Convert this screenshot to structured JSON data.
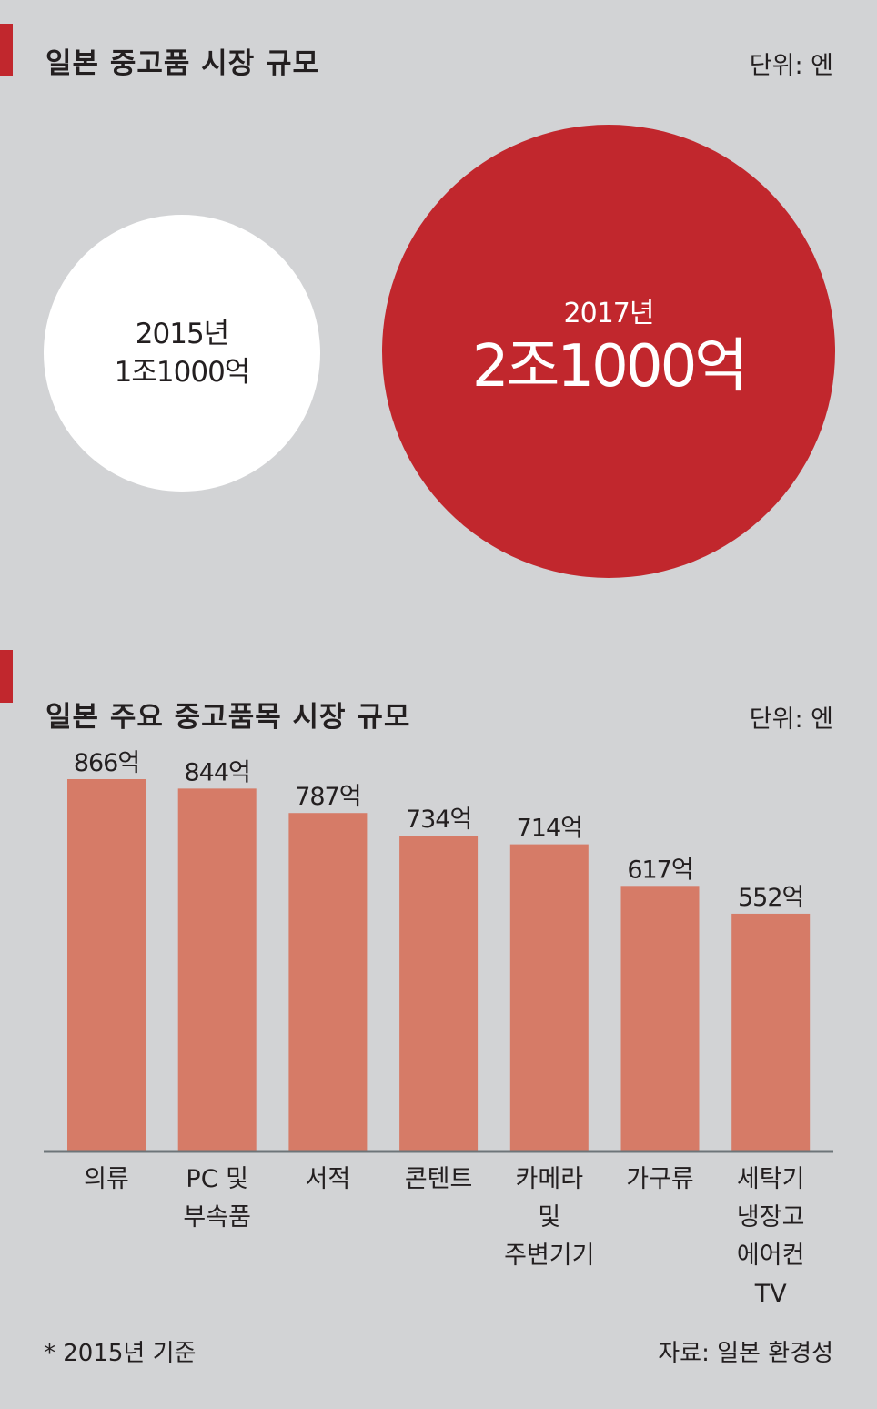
{
  "market_size": {
    "title": "일본 중고품 시장 규모",
    "unit": "단위: 엔",
    "items": [
      {
        "year_label": "2015년",
        "value_label": "1조1000억"
      },
      {
        "year_label": "2017년",
        "value_label": "2조1000억"
      }
    ]
  },
  "items_section": {
    "title": "일본 주요 중고품목 시장 규모",
    "unit": "단위: 엔"
  },
  "chart_data": {
    "type": "bar",
    "categories": [
      "의류",
      "PC 및 부속품",
      "서적",
      "콘텐트",
      "카메라 및 주변기기",
      "가구류",
      "세탁기 냉장고 에어컨 TV"
    ],
    "category_lines": [
      [
        "의류"
      ],
      [
        "PC 및",
        "부속품"
      ],
      [
        "서적"
      ],
      [
        "콘텐트"
      ],
      [
        "카메라",
        "및",
        "주변기기"
      ],
      [
        "가구류"
      ],
      [
        "세탁기",
        "냉장고",
        "에어컨",
        "TV"
      ]
    ],
    "values": [
      866,
      844,
      787,
      734,
      714,
      617,
      552
    ],
    "value_labels": [
      "866억",
      "844억",
      "787억",
      "734억",
      "714억",
      "617억",
      "552억"
    ],
    "ylim": [
      0,
      866
    ],
    "grid": false,
    "colors": {
      "bar": "#d67b67",
      "axis": "#6d7579"
    }
  },
  "footnote": "* 2015년 기준",
  "source": "자료: 일본 환경성",
  "colors": {
    "background": "#d2d3d5",
    "accent": "#c1272d",
    "white": "#ffffff"
  }
}
